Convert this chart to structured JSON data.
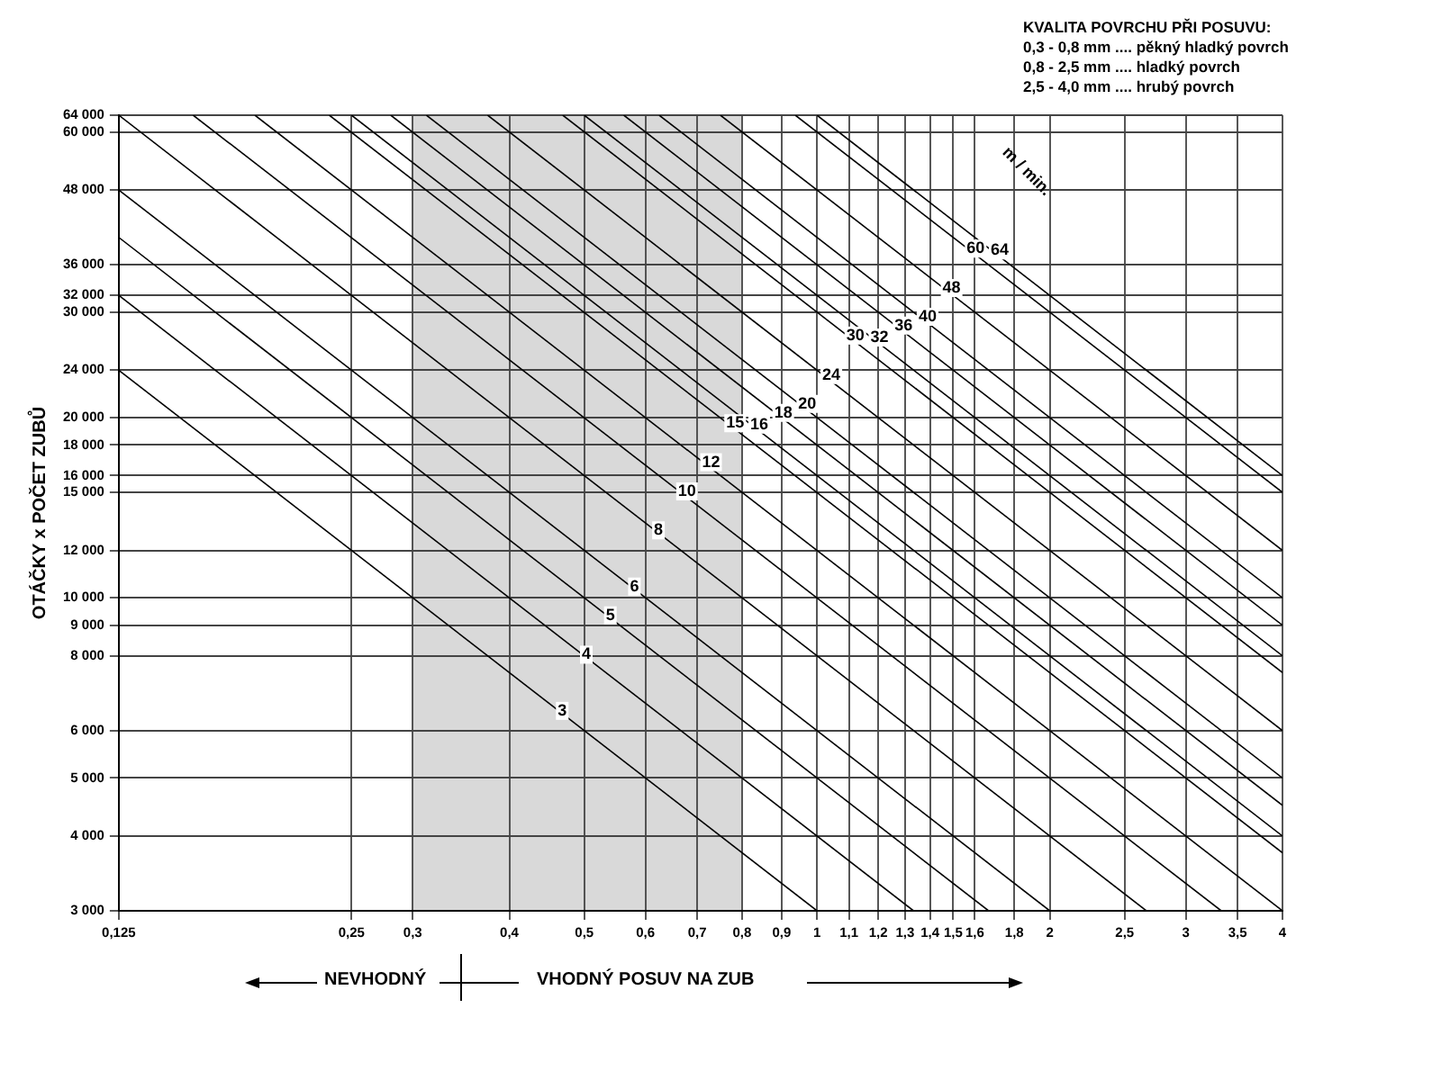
{
  "chart_data": {
    "type": "line",
    "ylabel": "OTÁČKY x POČET ZUBŮ",
    "log": "xy",
    "grid": true,
    "legend": false,
    "xlim": [
      0.125,
      4
    ],
    "ylim": [
      3000,
      64000
    ],
    "xticks": [
      {
        "value": 0.125,
        "label": "0,125"
      },
      {
        "value": 0.25,
        "label": "0,25"
      },
      {
        "value": 0.3,
        "label": "0,3"
      },
      {
        "value": 0.4,
        "label": "0,4"
      },
      {
        "value": 0.5,
        "label": "0,5"
      },
      {
        "value": 0.6,
        "label": "0,6"
      },
      {
        "value": 0.7,
        "label": "0,7"
      },
      {
        "value": 0.8,
        "label": "0,8"
      },
      {
        "value": 0.9,
        "label": "0,9"
      },
      1,
      {
        "value": 1.1,
        "label": "1,1"
      },
      {
        "value": 1.2,
        "label": "1,2"
      },
      {
        "value": 1.3,
        "label": "1,3"
      },
      {
        "value": 1.4,
        "label": "1,4"
      },
      {
        "value": 1.5,
        "label": "1,5"
      },
      {
        "value": 1.6,
        "label": "1,6"
      },
      {
        "value": 1.8,
        "label": "1,8"
      },
      2,
      {
        "value": 2.5,
        "label": "2,5"
      },
      3,
      {
        "value": 3.5,
        "label": "3,5"
      },
      4
    ],
    "yticks": [
      {
        "value": 3000,
        "label": "3 000"
      },
      {
        "value": 4000,
        "label": "4 000"
      },
      {
        "value": 5000,
        "label": "5 000"
      },
      {
        "value": 6000,
        "label": "6 000"
      },
      {
        "value": 8000,
        "label": "8 000"
      },
      {
        "value": 9000,
        "label": "9 000"
      },
      {
        "value": 10000,
        "label": "10 000"
      },
      {
        "value": 12000,
        "label": "12 000"
      },
      {
        "value": 15000,
        "label": "15 000"
      },
      {
        "value": 16000,
        "label": "16 000"
      },
      {
        "value": 18000,
        "label": "18 000"
      },
      {
        "value": 20000,
        "label": "20 000"
      },
      {
        "value": 24000,
        "label": "24 000"
      },
      {
        "value": 30000,
        "label": "30 000"
      },
      {
        "value": 32000,
        "label": "32 000"
      },
      {
        "value": 36000,
        "label": "36 000"
      },
      {
        "value": 48000,
        "label": "48 000"
      },
      {
        "value": 60000,
        "label": "60 000"
      },
      {
        "value": 64000,
        "label": "64 000"
      }
    ],
    "bands": [
      {
        "axis": "x",
        "from": 0.3,
        "to": 0.8,
        "color": "#d9d9d9"
      }
    ],
    "annotations": [
      "KVALITA POVRCHU PŘI POSUVU:",
      "0,3 - 0,8 mm .... pěkný hladký povrch",
      "0,8 - 2,5 mm .... hladký povrch",
      "2,5 - 4,0 mm .... hrubý povrch",
      "m / min.",
      "NEVHODNÝ",
      "VHODNÝ POSUV NA ZUB"
    ],
    "series": [
      {
        "name": "3",
        "color": "#000000",
        "x": [
          0.125,
          1
        ],
        "values": [
          24000,
          3000
        ]
      },
      {
        "name": "4",
        "color": "#000000",
        "x": [
          0.125,
          1.333
        ],
        "values": [
          32000,
          3000
        ]
      },
      {
        "name": "5",
        "color": "#000000",
        "x": [
          0.125,
          1.667
        ],
        "values": [
          40000,
          3000
        ]
      },
      {
        "name": "6",
        "color": "#000000",
        "x": [
          0.125,
          2
        ],
        "values": [
          48000,
          3000
        ]
      },
      {
        "name": "8",
        "color": "#000000",
        "x": [
          0.125,
          2.667
        ],
        "values": [
          64000,
          3000
        ]
      },
      {
        "name": "10",
        "color": "#000000",
        "x": [
          0.156,
          3.333
        ],
        "values": [
          64000,
          3000
        ]
      },
      {
        "name": "12",
        "color": "#000000",
        "x": [
          0.1875,
          4
        ],
        "values": [
          64000,
          3000
        ]
      },
      {
        "name": "15",
        "color": "#000000",
        "x": [
          0.234,
          4
        ],
        "values": [
          64000,
          3750
        ]
      },
      {
        "name": "16",
        "color": "#000000",
        "x": [
          0.25,
          4
        ],
        "values": [
          64000,
          4000
        ]
      },
      {
        "name": "18",
        "color": "#000000",
        "x": [
          0.281,
          4
        ],
        "values": [
          64000,
          4500
        ]
      },
      {
        "name": "20",
        "color": "#000000",
        "x": [
          0.3125,
          4
        ],
        "values": [
          64000,
          5000
        ]
      },
      {
        "name": "24",
        "color": "#000000",
        "x": [
          0.375,
          4
        ],
        "values": [
          64000,
          6000
        ]
      },
      {
        "name": "30",
        "color": "#000000",
        "x": [
          0.469,
          4
        ],
        "values": [
          64000,
          7500
        ]
      },
      {
        "name": "32",
        "color": "#000000",
        "x": [
          0.5,
          4
        ],
        "values": [
          64000,
          8000
        ]
      },
      {
        "name": "36",
        "color": "#000000",
        "x": [
          0.5625,
          4
        ],
        "values": [
          64000,
          9000
        ]
      },
      {
        "name": "40",
        "color": "#000000",
        "x": [
          0.625,
          4
        ],
        "values": [
          64000,
          10000
        ]
      },
      {
        "name": "48",
        "color": "#000000",
        "x": [
          0.75,
          4
        ],
        "values": [
          64000,
          12000
        ]
      },
      {
        "name": "60",
        "color": "#000000",
        "x": [
          0.9375,
          4
        ],
        "values": [
          64000,
          15000
        ]
      },
      {
        "name": "64",
        "color": "#000000",
        "x": [
          1,
          4
        ],
        "values": [
          64000,
          16000
        ]
      }
    ]
  }
}
